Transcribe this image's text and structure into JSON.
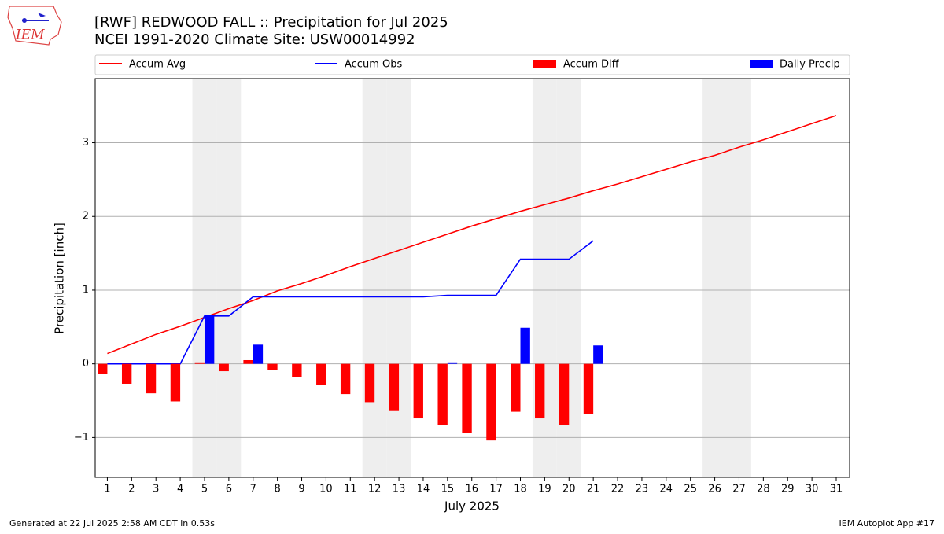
{
  "logo_text": "IEM",
  "footer_left": "Generated at 22 Jul 2025 2:58 AM CDT in 0.53s",
  "footer_right": "IEM Autoplot App #17",
  "chart_data": {
    "type": "line",
    "title": "[RWF] REDWOOD FALL :: Precipitation for Jul 2025",
    "subtitle": "NCEI 1991-2020 Climate Site: USW00014992",
    "xlabel": "July 2025",
    "ylabel": "Precipitation [inch]",
    "x": [
      1,
      2,
      3,
      4,
      5,
      6,
      7,
      8,
      9,
      10,
      11,
      12,
      13,
      14,
      15,
      16,
      17,
      18,
      19,
      20,
      21,
      22,
      23,
      24,
      25,
      26,
      27,
      28,
      29,
      30,
      31
    ],
    "xticks": [
      1,
      2,
      3,
      4,
      5,
      6,
      7,
      8,
      9,
      10,
      11,
      12,
      13,
      14,
      15,
      16,
      17,
      18,
      19,
      20,
      21,
      22,
      23,
      24,
      25,
      26,
      27,
      28,
      29,
      30,
      31
    ],
    "xlim": [
      0.5,
      31.55
    ],
    "ylim": [
      -1.54,
      3.87
    ],
    "yticks": [
      {
        "value": -1,
        "label": "−1"
      },
      0,
      1,
      2,
      3
    ],
    "grid": true,
    "shaded_days": [
      5,
      6,
      12,
      13,
      19,
      20,
      26,
      27
    ],
    "series": [
      {
        "name": "Accum Avg",
        "color": "#ff0000",
        "kind": "line",
        "values": [
          0.14,
          0.27,
          0.4,
          0.51,
          0.63,
          0.75,
          0.86,
          0.99,
          1.09,
          1.2,
          1.32,
          1.43,
          1.54,
          1.65,
          1.76,
          1.87,
          1.97,
          2.07,
          2.16,
          2.25,
          2.35,
          2.44,
          2.54,
          2.64,
          2.74,
          2.83,
          2.94,
          3.04,
          3.15,
          3.26,
          3.37
        ]
      },
      {
        "name": "Accum Obs",
        "color": "#0000ff",
        "kind": "line",
        "values": [
          0,
          0,
          0,
          0,
          0.65,
          0.65,
          0.91,
          0.91,
          0.91,
          0.91,
          0.91,
          0.91,
          0.91,
          0.91,
          0.93,
          0.93,
          0.93,
          1.42,
          1.42,
          1.42,
          1.67,
          null,
          null,
          null,
          null,
          null,
          null,
          null,
          null,
          null,
          null
        ]
      },
      {
        "name": "Accum Diff",
        "color": "#ff0000",
        "kind": "bar-left",
        "values": [
          -0.14,
          -0.27,
          -0.4,
          -0.51,
          0.02,
          -0.1,
          0.05,
          -0.08,
          -0.18,
          -0.29,
          -0.41,
          -0.52,
          -0.63,
          -0.74,
          -0.83,
          -0.94,
          -1.04,
          -0.65,
          -0.74,
          -0.83,
          -0.68,
          null,
          null,
          null,
          null,
          null,
          null,
          null,
          null,
          null,
          null
        ]
      },
      {
        "name": "Daily Precip",
        "color": "#0000ff",
        "kind": "bar-right",
        "values": [
          0,
          0,
          0,
          0,
          0.65,
          0,
          0.26,
          0,
          0,
          0,
          0,
          0,
          0,
          0,
          0.02,
          0,
          0,
          0.49,
          0,
          0,
          0.25,
          null,
          null,
          null,
          null,
          null,
          null,
          null,
          null,
          null,
          null
        ]
      }
    ]
  }
}
